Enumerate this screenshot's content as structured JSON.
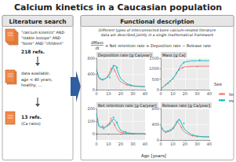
{
  "title": "Calcium kinetics in a Caucasian population",
  "literature": {
    "heading": "Literature search",
    "query": [
      "\"calcium kinetics\" AND",
      "\"stable isotope\" AND",
      "\"bone\" AND \"children\""
    ],
    "count1": "218 refs.",
    "criteria": [
      "data available,",
      "age < 40 years,",
      "healthy, ..."
    ],
    "count2": "13 refs.",
    "count2_note": "(Ca rates)"
  },
  "functional": {
    "heading": "Functional description",
    "description": "Different types of interconnected bone calcium-related literature data are described jointly in a single mathematical framework",
    "equation": {
      "numerator": "dMass",
      "denominator": "dt",
      "rhs": "= Net retention rate = Deposition rate − Release rate"
    },
    "xlabel": "Age [years]",
    "legend_title": "Sex"
  },
  "chart_data": [
    {
      "type": "line",
      "title": "Deposition rate [g Ca/year]",
      "grid": true,
      "legend": "right",
      "x": [
        0,
        2,
        4,
        6,
        8,
        10,
        12,
        14,
        16,
        18,
        20,
        25,
        30,
        35,
        40
      ],
      "xlim": [
        0,
        40
      ],
      "xticks": [
        0,
        10,
        20,
        30,
        40
      ],
      "ylim": [
        0,
        800
      ],
      "yticks": [
        0,
        400,
        800
      ],
      "series": [
        {
          "name": "female",
          "color": "#F8766D",
          "values": [
            500,
            300,
            250,
            260,
            290,
            380,
            520,
            560,
            420,
            280,
            200,
            120,
            90,
            80,
            75
          ],
          "points_x": [
            3,
            9,
            12,
            15,
            25
          ],
          "points_y": [
            280,
            330,
            540,
            480,
            130
          ]
        },
        {
          "name": "male",
          "color": "#00BFC4",
          "values": [
            520,
            310,
            260,
            270,
            290,
            340,
            450,
            620,
            600,
            420,
            280,
            150,
            100,
            85,
            80
          ],
          "points_x": [
            5,
            11,
            14,
            17,
            28
          ],
          "points_y": [
            250,
            310,
            600,
            560,
            110
          ]
        }
      ]
    },
    {
      "type": "line",
      "title": "Mass [g Ca]",
      "grid": true,
      "x": [
        0,
        2,
        4,
        6,
        8,
        10,
        12,
        14,
        16,
        18,
        20,
        25,
        30,
        35,
        40
      ],
      "xlim": [
        0,
        40
      ],
      "xticks": [
        0,
        10,
        20,
        30,
        40
      ],
      "ylim": [
        0,
        1500
      ],
      "yticks": [
        0,
        500,
        1000,
        1500
      ],
      "series": [
        {
          "name": "female",
          "color": "#F8766D",
          "values": [
            30,
            120,
            220,
            320,
            420,
            540,
            700,
            880,
            1000,
            1060,
            1090,
            1110,
            1120,
            1120,
            1120
          ],
          "points_x": [
            4,
            8,
            13,
            18,
            30
          ],
          "points_y": [
            230,
            410,
            800,
            1040,
            1100
          ]
        },
        {
          "name": "male",
          "color": "#00BFC4",
          "values": [
            30,
            125,
            230,
            330,
            430,
            540,
            680,
            880,
            1100,
            1250,
            1320,
            1370,
            1380,
            1380,
            1380
          ],
          "points_x": [
            6,
            10,
            15,
            19,
            32
          ],
          "points_y": [
            300,
            520,
            950,
            1290,
            1400
          ]
        }
      ]
    },
    {
      "type": "line",
      "title": "Net retention rate [g Ca/year]",
      "grid": true,
      "x": [
        0,
        2,
        4,
        6,
        8,
        10,
        12,
        14,
        16,
        18,
        20,
        25,
        30,
        35,
        40
      ],
      "xlim": [
        0,
        40
      ],
      "xticks": [
        0,
        10,
        20,
        30,
        40
      ],
      "ylim": [
        -50,
        200
      ],
      "yticks": [
        0,
        100,
        200
      ],
      "series": [
        {
          "name": "female",
          "color": "#F8766D",
          "values": [
            150,
            60,
            50,
            50,
            55,
            75,
            110,
            90,
            45,
            20,
            10,
            3,
            1,
            0,
            0
          ],
          "points_x": [
            5,
            9,
            12,
            15,
            22
          ],
          "points_y": [
            60,
            70,
            120,
            70,
            5
          ]
        },
        {
          "name": "male",
          "color": "#00BFC4",
          "values": [
            160,
            60,
            50,
            50,
            55,
            65,
            90,
            120,
            100,
            60,
            25,
            8,
            2,
            0,
            0
          ],
          "points_x": [
            6,
            11,
            14,
            17,
            24
          ],
          "points_y": [
            40,
            80,
            130,
            90,
            15
          ]
        }
      ]
    },
    {
      "type": "line",
      "title": "Release rate [g Ca/year]",
      "grid": true,
      "x": [
        0,
        2,
        4,
        6,
        8,
        10,
        12,
        14,
        16,
        18,
        20,
        25,
        30,
        35,
        40
      ],
      "xlim": [
        0,
        40
      ],
      "xticks": [
        0,
        10,
        20,
        30,
        40
      ],
      "ylim": [
        0,
        800
      ],
      "yticks": [
        0,
        400,
        800
      ],
      "series": [
        {
          "name": "female",
          "color": "#F8766D",
          "values": [
            350,
            240,
            200,
            210,
            235,
            305,
            410,
            470,
            375,
            260,
            190,
            117,
            89,
            80,
            75
          ],
          "points_x": [
            4,
            8,
            13,
            17,
            26
          ],
          "points_y": [
            190,
            260,
            460,
            320,
            110
          ]
        },
        {
          "name": "male",
          "color": "#00BFC4",
          "values": [
            360,
            250,
            210,
            220,
            235,
            275,
            360,
            500,
            500,
            360,
            255,
            142,
            98,
            85,
            80
          ],
          "points_x": [
            6,
            10,
            15,
            19,
            30
          ],
          "points_y": [
            230,
            300,
            520,
            420,
            90
          ]
        }
      ]
    }
  ]
}
